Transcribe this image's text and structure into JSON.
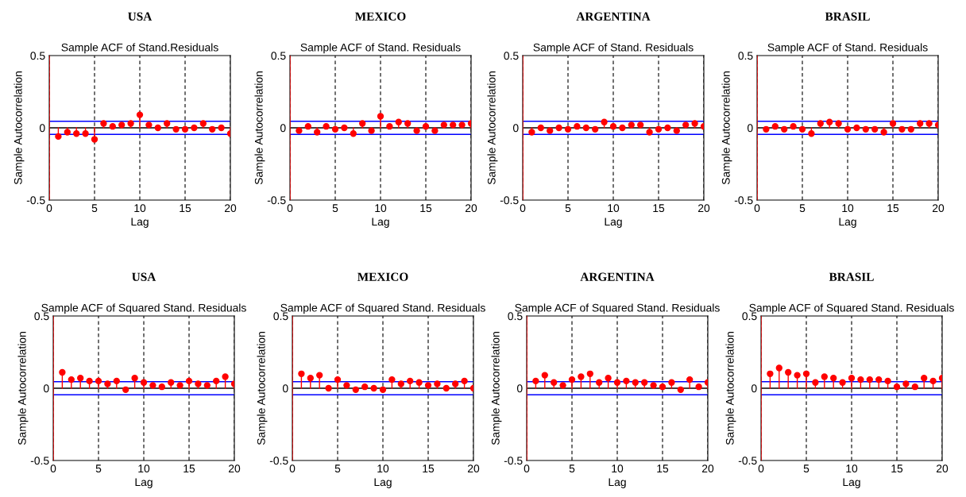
{
  "chart_data": [
    {
      "type": "lollipop",
      "title": "USA",
      "subtitle": "Sample ACF of Stand.Residuals",
      "xlabel": "Lag",
      "ylabel": "Sample Autocorrelation",
      "x": [
        1,
        2,
        3,
        4,
        5,
        6,
        7,
        8,
        9,
        10,
        11,
        12,
        13,
        14,
        15,
        16,
        17,
        18,
        19,
        20
      ],
      "color": "#ff0000",
      "marker": "circle",
      "grid": "x",
      "xlim": [
        0,
        20
      ],
      "xticks": [
        0,
        5,
        10,
        15,
        20
      ],
      "ylim": [
        -0.5,
        0.5
      ],
      "yticks": [
        -0.5,
        0,
        0.5
      ],
      "values": [
        -0.06,
        -0.03,
        -0.04,
        -0.04,
        -0.08,
        0.03,
        0.01,
        0.02,
        0.03,
        0.09,
        0.02,
        0,
        0.03,
        -0.01,
        -0.01,
        0,
        0.03,
        -0.01,
        0,
        -0.04
      ],
      "ref_lines": [
        {
          "axis": "y",
          "value": 0.045,
          "color": "#0000ff"
        },
        {
          "axis": "y",
          "value": -0.045,
          "color": "#0000ff"
        },
        {
          "axis": "y",
          "value": 0,
          "color": "#000000"
        },
        {
          "axis": "x",
          "value": 0,
          "color": "#ff0000"
        }
      ]
    },
    {
      "type": "lollipop",
      "title": "MEXICO",
      "subtitle": "Sample ACF of Stand. Residuals",
      "xlabel": "Lag",
      "ylabel": "Sample Autocorrelation",
      "x": [
        1,
        2,
        3,
        4,
        5,
        6,
        7,
        8,
        9,
        10,
        11,
        12,
        13,
        14,
        15,
        16,
        17,
        18,
        19,
        20
      ],
      "color": "#ff0000",
      "marker": "circle",
      "grid": "x",
      "xlim": [
        0,
        20
      ],
      "xticks": [
        0,
        5,
        10,
        15,
        20
      ],
      "ylim": [
        -0.5,
        0.5
      ],
      "yticks": [
        -0.5,
        0,
        0.5
      ],
      "values": [
        -0.02,
        0.01,
        -0.03,
        0.01,
        -0.01,
        0,
        -0.04,
        0.03,
        -0.02,
        0.08,
        0.01,
        0.04,
        0.03,
        -0.02,
        0.01,
        -0.02,
        0.02,
        0.02,
        0.02,
        0.03
      ],
      "ref_lines": [
        {
          "axis": "y",
          "value": 0.045,
          "color": "#0000ff"
        },
        {
          "axis": "y",
          "value": -0.045,
          "color": "#0000ff"
        },
        {
          "axis": "y",
          "value": 0,
          "color": "#000000"
        },
        {
          "axis": "x",
          "value": 0,
          "color": "#ff0000"
        }
      ]
    },
    {
      "type": "lollipop",
      "title": "ARGENTINA",
      "subtitle": "Sample ACF of Stand. Residuals",
      "xlabel": "Lag",
      "ylabel": "Sample Autocorrelation",
      "x": [
        1,
        2,
        3,
        4,
        5,
        6,
        7,
        8,
        9,
        10,
        11,
        12,
        13,
        14,
        15,
        16,
        17,
        18,
        19,
        20
      ],
      "color": "#ff0000",
      "marker": "circle",
      "grid": "x",
      "xlim": [
        0,
        20
      ],
      "xticks": [
        0,
        5,
        10,
        15,
        20
      ],
      "ylim": [
        -0.5,
        0.5
      ],
      "yticks": [
        -0.5,
        0,
        0.5
      ],
      "values": [
        -0.03,
        0,
        -0.02,
        0,
        -0.01,
        0.01,
        0,
        -0.01,
        0.04,
        0.01,
        0,
        0.02,
        0.02,
        -0.03,
        -0.01,
        0,
        -0.02,
        0.02,
        0.03,
        0.01
      ],
      "ref_lines": [
        {
          "axis": "y",
          "value": 0.045,
          "color": "#0000ff"
        },
        {
          "axis": "y",
          "value": -0.045,
          "color": "#0000ff"
        },
        {
          "axis": "y",
          "value": 0,
          "color": "#000000"
        },
        {
          "axis": "x",
          "value": 0,
          "color": "#ff0000"
        }
      ]
    },
    {
      "type": "lollipop",
      "title": "BRASIL",
      "subtitle": "Sample ACF of Stand. Residuals",
      "xlabel": "Lag",
      "ylabel": "Sample Autocorrelation",
      "x": [
        1,
        2,
        3,
        4,
        5,
        6,
        7,
        8,
        9,
        10,
        11,
        12,
        13,
        14,
        15,
        16,
        17,
        18,
        19,
        20
      ],
      "color": "#ff0000",
      "marker": "circle",
      "grid": "x",
      "xlim": [
        0,
        20
      ],
      "xticks": [
        0,
        5,
        10,
        15,
        20
      ],
      "ylim": [
        -0.5,
        0.5
      ],
      "yticks": [
        -0.5,
        0,
        0.5
      ],
      "values": [
        -0.01,
        0.01,
        -0.01,
        0.01,
        -0.01,
        -0.04,
        0.03,
        0.04,
        0.03,
        -0.01,
        0,
        -0.01,
        -0.01,
        -0.03,
        0.03,
        -0.01,
        -0.01,
        0.03,
        0.03,
        0.02
      ],
      "ref_lines": [
        {
          "axis": "y",
          "value": 0.045,
          "color": "#0000ff"
        },
        {
          "axis": "y",
          "value": -0.045,
          "color": "#0000ff"
        },
        {
          "axis": "y",
          "value": 0,
          "color": "#000000"
        },
        {
          "axis": "x",
          "value": 0,
          "color": "#ff0000"
        }
      ]
    },
    {
      "type": "lollipop",
      "title": "USA",
      "subtitle": "Sample ACF of Squared Stand. Residuals",
      "xlabel": "Lag",
      "ylabel": "Sample Autocorrelation",
      "x": [
        1,
        2,
        3,
        4,
        5,
        6,
        7,
        8,
        9,
        10,
        11,
        12,
        13,
        14,
        15,
        16,
        17,
        18,
        19,
        20
      ],
      "color": "#ff0000",
      "marker": "circle",
      "grid": "x",
      "xlim": [
        0,
        20
      ],
      "xticks": [
        0,
        5,
        10,
        15,
        20
      ],
      "ylim": [
        -0.5,
        0.5
      ],
      "yticks": [
        -0.5,
        0,
        0.5
      ],
      "values": [
        0.11,
        0.06,
        0.07,
        0.05,
        0.05,
        0.03,
        0.05,
        -0.01,
        0.07,
        0.04,
        0.02,
        0.01,
        0.04,
        0.02,
        0.05,
        0.03,
        0.02,
        0.05,
        0.08,
        0.03
      ],
      "ref_lines": [
        {
          "axis": "y",
          "value": 0.045,
          "color": "#0000ff"
        },
        {
          "axis": "y",
          "value": -0.045,
          "color": "#0000ff"
        },
        {
          "axis": "y",
          "value": 0,
          "color": "#000000"
        },
        {
          "axis": "x",
          "value": 0,
          "color": "#ff0000"
        }
      ]
    },
    {
      "type": "lollipop",
      "title": "MEXICO",
      "subtitle": "Sample ACF of Squared Stand. Residuals",
      "xlabel": "Lag",
      "ylabel": "Sample Autocorrelation",
      "x": [
        1,
        2,
        3,
        4,
        5,
        6,
        7,
        8,
        9,
        10,
        11,
        12,
        13,
        14,
        15,
        16,
        17,
        18,
        19,
        20
      ],
      "color": "#ff0000",
      "marker": "circle",
      "grid": "x",
      "xlim": [
        0,
        20
      ],
      "xticks": [
        0,
        5,
        10,
        15,
        20
      ],
      "ylim": [
        -0.5,
        0.5
      ],
      "yticks": [
        -0.5,
        0,
        0.5
      ],
      "values": [
        0.1,
        0.07,
        0.09,
        0,
        0.06,
        0.02,
        -0.01,
        0.01,
        0,
        -0.01,
        0.06,
        0.03,
        0.05,
        0.04,
        0.02,
        0.03,
        0,
        0.03,
        0.05,
        0
      ],
      "ref_lines": [
        {
          "axis": "y",
          "value": 0.045,
          "color": "#0000ff"
        },
        {
          "axis": "y",
          "value": -0.045,
          "color": "#0000ff"
        },
        {
          "axis": "y",
          "value": 0,
          "color": "#000000"
        },
        {
          "axis": "x",
          "value": 0,
          "color": "#ff0000"
        }
      ]
    },
    {
      "type": "lollipop",
      "title": "ARGENTINA",
      "subtitle": "Sample ACF of Squared Stand. Residuals",
      "xlabel": "Lag",
      "ylabel": "Sample Autocorrelation",
      "x": [
        1,
        2,
        3,
        4,
        5,
        6,
        7,
        8,
        9,
        10,
        11,
        12,
        13,
        14,
        15,
        16,
        17,
        18,
        19,
        20
      ],
      "color": "#ff0000",
      "marker": "circle",
      "grid": "x",
      "xlim": [
        0,
        20
      ],
      "xticks": [
        0,
        5,
        10,
        15,
        20
      ],
      "ylim": [
        -0.5,
        0.5
      ],
      "yticks": [
        -0.5,
        0,
        0.5
      ],
      "values": [
        0.05,
        0.09,
        0.04,
        0.02,
        0.06,
        0.08,
        0.1,
        0.04,
        0.07,
        0.04,
        0.05,
        0.04,
        0.04,
        0.02,
        0.01,
        0.04,
        -0.01,
        0.06,
        0.01,
        0.04
      ],
      "ref_lines": [
        {
          "axis": "y",
          "value": 0.045,
          "color": "#0000ff"
        },
        {
          "axis": "y",
          "value": -0.045,
          "color": "#0000ff"
        },
        {
          "axis": "y",
          "value": 0,
          "color": "#000000"
        },
        {
          "axis": "x",
          "value": 0,
          "color": "#ff0000"
        }
      ]
    },
    {
      "type": "lollipop",
      "title": "BRASIL",
      "subtitle": "Sample ACF of Squared Stand. Residuals",
      "xlabel": "Lag",
      "ylabel": "Sample Autocorrelation",
      "x": [
        1,
        2,
        3,
        4,
        5,
        6,
        7,
        8,
        9,
        10,
        11,
        12,
        13,
        14,
        15,
        16,
        17,
        18,
        19,
        20
      ],
      "color": "#ff0000",
      "marker": "circle",
      "grid": "x",
      "xlim": [
        0,
        20
      ],
      "xticks": [
        0,
        5,
        10,
        15,
        20
      ],
      "ylim": [
        -0.5,
        0.5
      ],
      "yticks": [
        -0.5,
        0,
        0.5
      ],
      "values": [
        0.1,
        0.14,
        0.11,
        0.09,
        0.1,
        0.04,
        0.08,
        0.07,
        0.04,
        0.07,
        0.06,
        0.06,
        0.06,
        0.05,
        0.01,
        0.03,
        0.01,
        0.07,
        0.05,
        0.07
      ],
      "ref_lines": [
        {
          "axis": "y",
          "value": 0.045,
          "color": "#0000ff"
        },
        {
          "axis": "y",
          "value": -0.045,
          "color": "#0000ff"
        },
        {
          "axis": "y",
          "value": 0,
          "color": "#000000"
        },
        {
          "axis": "x",
          "value": 0,
          "color": "#ff0000"
        }
      ]
    }
  ]
}
